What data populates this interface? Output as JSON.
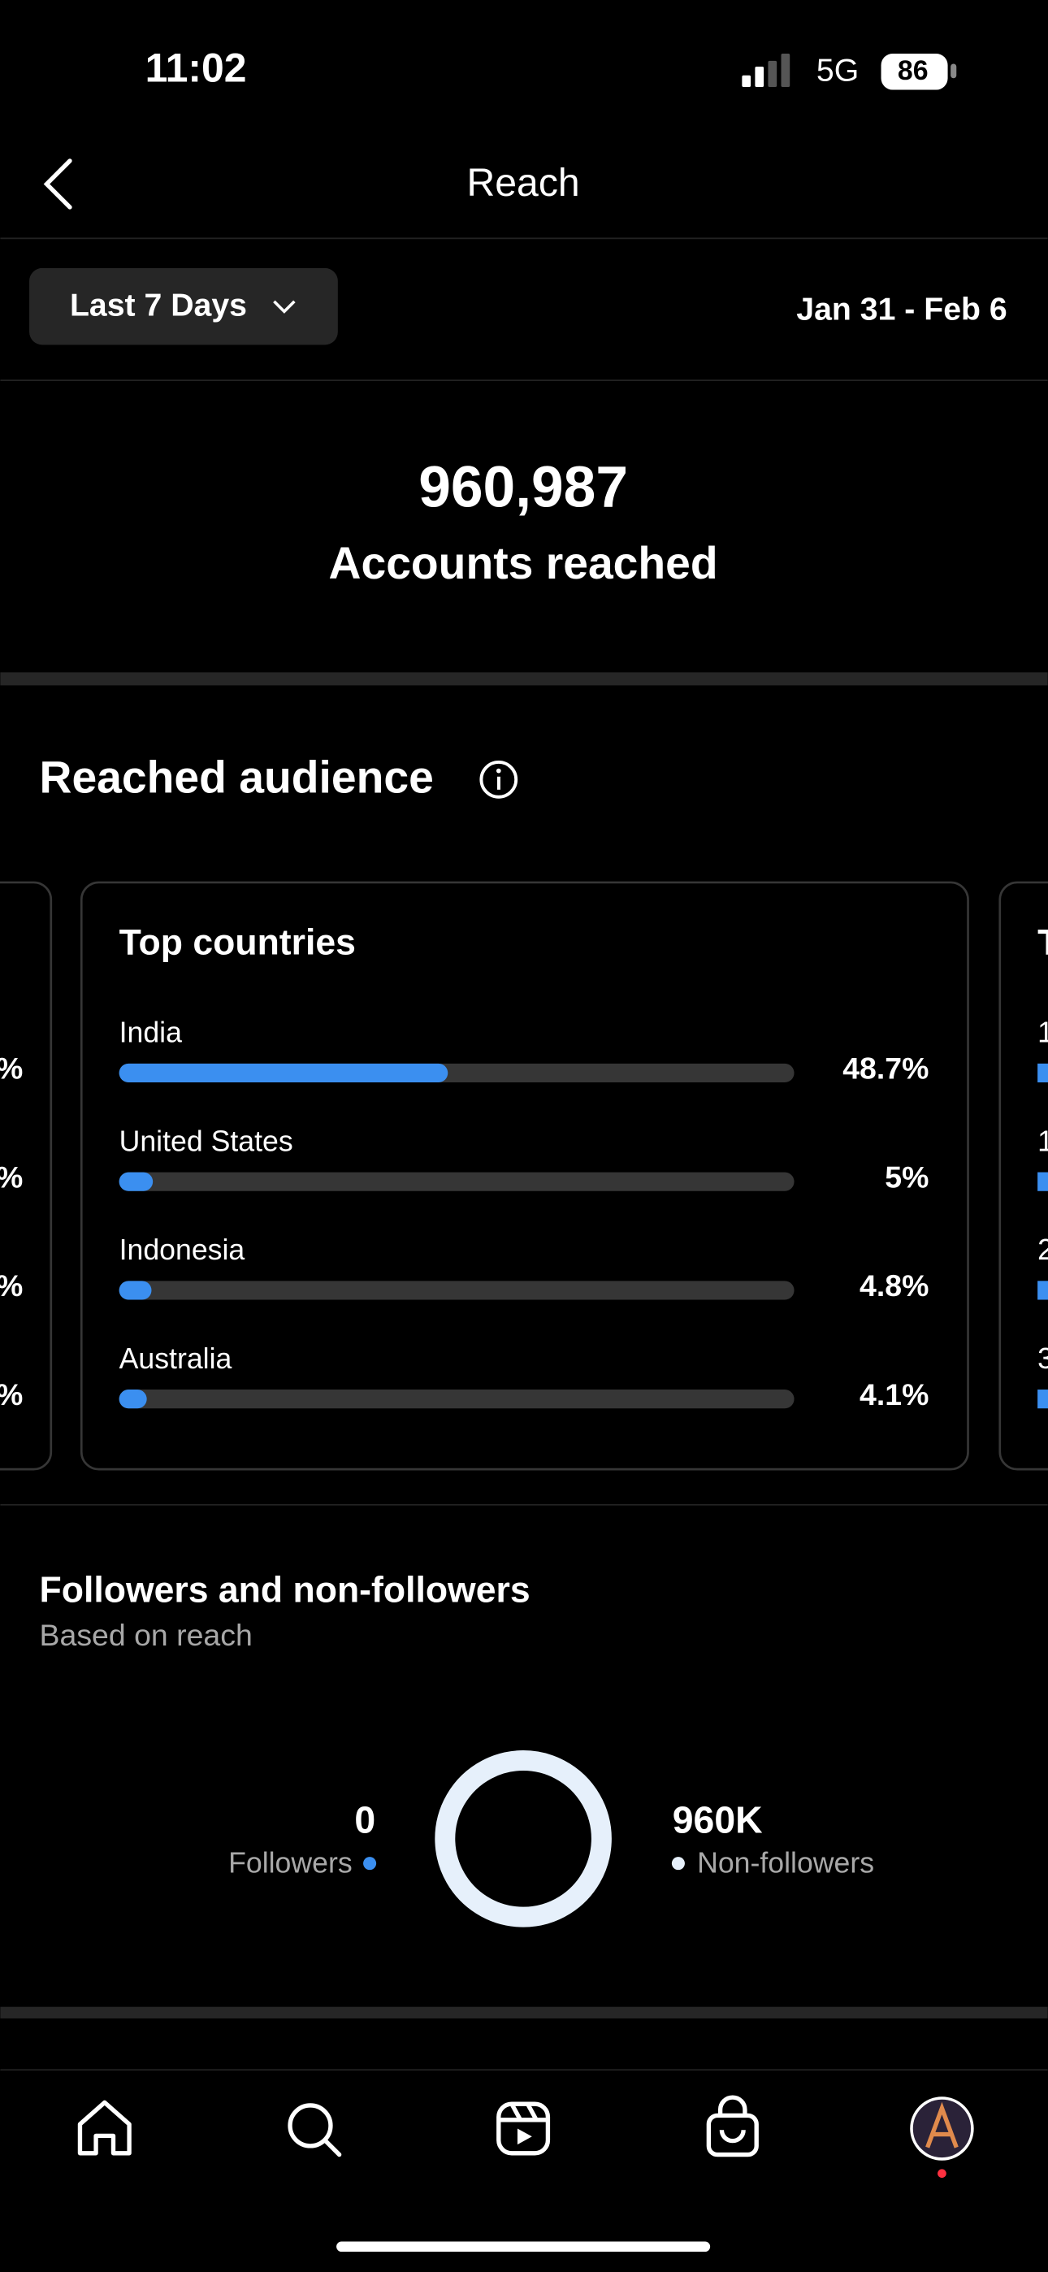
{
  "status_bar": {
    "time": "11:02",
    "network": "5G",
    "battery": "86"
  },
  "header": {
    "title": "Reach"
  },
  "date_filter": {
    "range_button": "Last 7 Days",
    "date_range": "Jan 31 - Feb 6"
  },
  "summary": {
    "value": "960,987",
    "label": "Accounts reached"
  },
  "reached_audience": {
    "title": "Reached audience",
    "left_card_fragments": [
      "%",
      "%",
      "%",
      "%"
    ],
    "right_card_fragments": [
      "T",
      "1",
      "1",
      "2",
      "3"
    ],
    "chart_data": {
      "type": "bar",
      "orientation": "horizontal",
      "title": "Top countries",
      "categories": [
        "India",
        "United States",
        "Indonesia",
        "Australia"
      ],
      "values": [
        48.7,
        5,
        4.8,
        4.1
      ],
      "value_labels": [
        "48.7%",
        "5%",
        "4.8%",
        "4.1%"
      ],
      "xlim": [
        0,
        100
      ],
      "color": "#3b8ff0"
    }
  },
  "followers": {
    "title": "Followers and non-followers",
    "subtitle": "Based on reach",
    "chart_data": {
      "type": "donut",
      "categories": [
        "Followers",
        "Non-followers"
      ],
      "values": [
        0,
        960000
      ],
      "value_labels": [
        "0",
        "960K"
      ],
      "colors": [
        "#3b8ff0",
        "#e6f0fb"
      ]
    }
  }
}
